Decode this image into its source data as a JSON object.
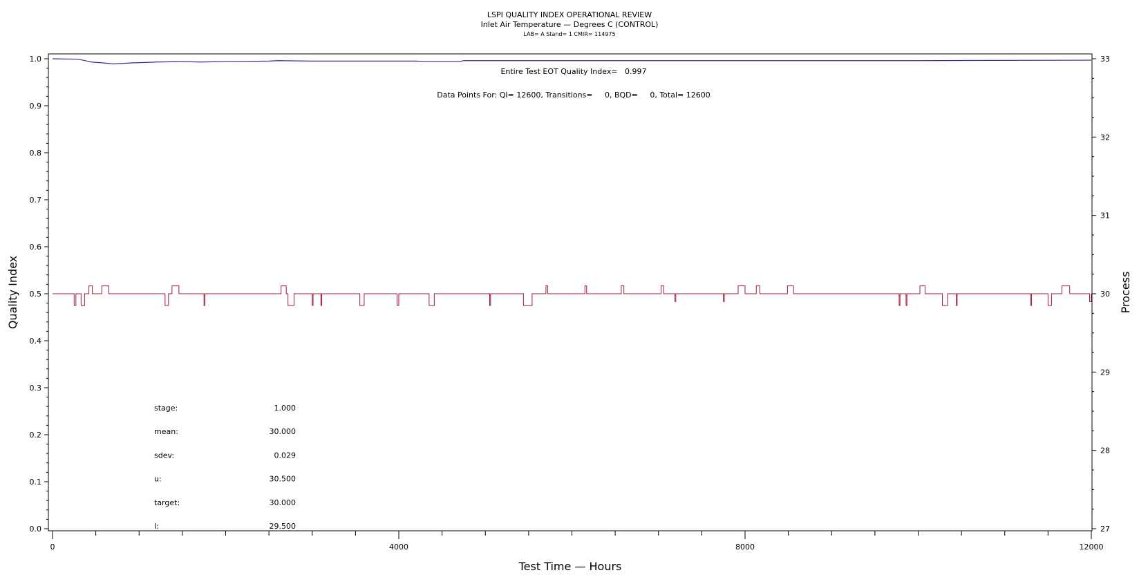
{
  "chart_data": {
    "type": "line",
    "title": "LSPI QUALITY INDEX OPERATIONAL REVIEW",
    "subtitle": "Inlet Air Temperature — Degrees C (CONTROL)",
    "subtitle2": "LAB= A Stand= 1 CMIR= 114975",
    "xlabel": "Test Time — Hours",
    "ylabel_left": "Quality Index",
    "ylabel_right": "Process",
    "xlim": [
      0,
      12000
    ],
    "ylim_left": [
      0.0,
      1.0
    ],
    "ylim_right": [
      27,
      33
    ],
    "x_ticks": [
      0,
      4000,
      8000,
      12000
    ],
    "y_left_ticks": [
      "0.0",
      "0.1",
      "0.2",
      "0.3",
      "0.4",
      "0.5",
      "0.6",
      "0.7",
      "0.8",
      "0.9",
      "1.0"
    ],
    "y_right_ticks": [
      "27",
      "28",
      "29",
      "30",
      "31",
      "32",
      "33"
    ],
    "annotation_qi": "Entire Test EOT Quality Index=   0.997",
    "annotation_points": "Data Points For: QI= 12600, Transitions=     0, BQD=     0, Total= 12600",
    "stats": [
      {
        "label": "stage:",
        "value": "1.000"
      },
      {
        "label": "mean:",
        "value": "30.000"
      },
      {
        "label": "sdev:",
        "value": "0.029"
      },
      {
        "label": "u:",
        "value": "30.500"
      },
      {
        "label": "target:",
        "value": "30.000"
      },
      {
        "label": "l:",
        "value": "29.500"
      }
    ],
    "grid": false,
    "series": [
      {
        "axis": "left",
        "color": "#2b2b9e",
        "points": [
          [
            0,
            1.0
          ],
          [
            300,
            0.999
          ],
          [
            450,
            0.993
          ],
          [
            600,
            0.991
          ],
          [
            700,
            0.989
          ],
          [
            900,
            0.991
          ],
          [
            1200,
            0.993
          ],
          [
            1500,
            0.994
          ],
          [
            1700,
            0.993
          ],
          [
            2000,
            0.994
          ],
          [
            2500,
            0.995
          ],
          [
            2600,
            0.996
          ],
          [
            3000,
            0.995
          ],
          [
            4200,
            0.995
          ],
          [
            4300,
            0.994
          ],
          [
            4700,
            0.994
          ],
          [
            4750,
            0.996
          ],
          [
            6000,
            0.996
          ],
          [
            8000,
            0.996
          ],
          [
            10000,
            0.996
          ],
          [
            12000,
            0.997
          ]
        ]
      },
      {
        "axis": "right",
        "color": "#a01830",
        "points": [
          [
            0,
            30
          ],
          [
            250,
            30
          ],
          [
            250,
            29.85
          ],
          [
            270,
            29.85
          ],
          [
            270,
            30
          ],
          [
            330,
            30
          ],
          [
            330,
            29.85
          ],
          [
            370,
            29.85
          ],
          [
            370,
            30
          ],
          [
            420,
            30
          ],
          [
            420,
            30.1
          ],
          [
            460,
            30.1
          ],
          [
            460,
            30
          ],
          [
            570,
            30
          ],
          [
            570,
            30.1
          ],
          [
            650,
            30.1
          ],
          [
            650,
            30
          ],
          [
            1300,
            30
          ],
          [
            1300,
            29.85
          ],
          [
            1340,
            29.85
          ],
          [
            1340,
            30
          ],
          [
            1380,
            30
          ],
          [
            1380,
            30.1
          ],
          [
            1460,
            30.1
          ],
          [
            1460,
            30
          ],
          [
            1750,
            30
          ],
          [
            1750,
            29.85
          ],
          [
            1760,
            29.85
          ],
          [
            1760,
            30
          ],
          [
            2640,
            30
          ],
          [
            2640,
            30.1
          ],
          [
            2700,
            30.1
          ],
          [
            2700,
            30
          ],
          [
            2720,
            30
          ],
          [
            2720,
            29.85
          ],
          [
            2790,
            29.85
          ],
          [
            2790,
            30
          ],
          [
            3000,
            30
          ],
          [
            3000,
            29.85
          ],
          [
            3010,
            29.85
          ],
          [
            3010,
            30
          ],
          [
            3100,
            30
          ],
          [
            3100,
            29.85
          ],
          [
            3110,
            29.85
          ],
          [
            3110,
            30
          ],
          [
            3550,
            30
          ],
          [
            3550,
            29.85
          ],
          [
            3600,
            29.85
          ],
          [
            3600,
            30
          ],
          [
            3980,
            30
          ],
          [
            3980,
            29.85
          ],
          [
            4000,
            29.85
          ],
          [
            4000,
            30
          ],
          [
            4350,
            30
          ],
          [
            4350,
            29.85
          ],
          [
            4410,
            29.85
          ],
          [
            4410,
            30
          ],
          [
            5050,
            30
          ],
          [
            5050,
            29.85
          ],
          [
            5060,
            29.85
          ],
          [
            5060,
            30
          ],
          [
            5440,
            30
          ],
          [
            5440,
            29.85
          ],
          [
            5540,
            29.85
          ],
          [
            5540,
            30
          ],
          [
            5700,
            30
          ],
          [
            5700,
            30.1
          ],
          [
            5720,
            30.1
          ],
          [
            5720,
            30
          ],
          [
            6150,
            30
          ],
          [
            6150,
            30.1
          ],
          [
            6170,
            30.1
          ],
          [
            6170,
            30
          ],
          [
            6570,
            30
          ],
          [
            6570,
            30.1
          ],
          [
            6600,
            30.1
          ],
          [
            6600,
            30
          ],
          [
            7030,
            30
          ],
          [
            7030,
            30.1
          ],
          [
            7060,
            30.1
          ],
          [
            7060,
            30
          ],
          [
            7190,
            30
          ],
          [
            7190,
            29.9
          ],
          [
            7200,
            29.9
          ],
          [
            7200,
            30
          ],
          [
            7750,
            30
          ],
          [
            7750,
            29.9
          ],
          [
            7760,
            29.9
          ],
          [
            7760,
            30
          ],
          [
            7920,
            30
          ],
          [
            7920,
            30.1
          ],
          [
            8000,
            30.1
          ],
          [
            8000,
            30
          ],
          [
            8130,
            30
          ],
          [
            8130,
            30.1
          ],
          [
            8170,
            30.1
          ],
          [
            8170,
            30
          ],
          [
            8490,
            30
          ],
          [
            8490,
            30.1
          ],
          [
            8560,
            30.1
          ],
          [
            8560,
            30
          ],
          [
            9780,
            30
          ],
          [
            9780,
            29.85
          ],
          [
            9790,
            29.85
          ],
          [
            9790,
            30
          ],
          [
            9860,
            30
          ],
          [
            9860,
            29.85
          ],
          [
            9870,
            29.85
          ],
          [
            9870,
            30
          ],
          [
            10020,
            30
          ],
          [
            10020,
            30.1
          ],
          [
            10080,
            30.1
          ],
          [
            10080,
            30
          ],
          [
            10280,
            30
          ],
          [
            10280,
            29.85
          ],
          [
            10340,
            29.85
          ],
          [
            10340,
            30
          ],
          [
            10440,
            30
          ],
          [
            10440,
            29.85
          ],
          [
            10450,
            29.85
          ],
          [
            10450,
            30
          ],
          [
            11300,
            30
          ],
          [
            11300,
            29.85
          ],
          [
            11310,
            29.85
          ],
          [
            11310,
            30
          ],
          [
            11500,
            30
          ],
          [
            11500,
            29.85
          ],
          [
            11540,
            29.85
          ],
          [
            11540,
            30
          ],
          [
            11660,
            30
          ],
          [
            11660,
            30.1
          ],
          [
            11750,
            30.1
          ],
          [
            11750,
            30
          ],
          [
            11980,
            30
          ],
          [
            11980,
            29.9
          ],
          [
            12000,
            29.9
          ],
          [
            12000,
            30
          ]
        ]
      }
    ]
  }
}
